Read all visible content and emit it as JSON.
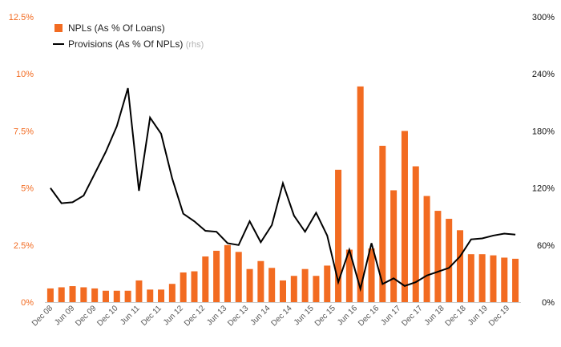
{
  "chart_data": {
    "type": "bar",
    "combo": "bar + line (dual axis)",
    "colors": {
      "bars": "#f26b21",
      "line": "#000000",
      "left_ticks": "#f26b21",
      "right_ticks": "#111111"
    },
    "left_axis": {
      "range": [
        0,
        12.5
      ],
      "ticks": [
        0,
        2.5,
        5,
        7.5,
        10,
        12.5
      ],
      "tick_labels": [
        "0%",
        "2.5%",
        "5%",
        "7.5%",
        "10%",
        "12.5%"
      ]
    },
    "right_axis": {
      "range": [
        0,
        300
      ],
      "ticks": [
        0,
        60,
        120,
        180,
        240,
        300
      ],
      "tick_labels": [
        "0%",
        "60%",
        "120%",
        "180%",
        "240%",
        "300%"
      ]
    },
    "x_tick_labels": [
      "Dec 08",
      "Jun 09",
      "Dec 09",
      "Dec 10",
      "Jun 11",
      "Dec 11",
      "Jun 12",
      "Dec 12",
      "Jun 13",
      "Dec 13",
      "Jun 14",
      "Dec 14",
      "Jun 15",
      "Dec 15",
      "Jun 16",
      "Dec 16",
      "Jun 17",
      "Dec 17",
      "Jun 18",
      "Dec 18",
      "Jun 19",
      "Dec 19"
    ],
    "legend": {
      "bars": "NPLs (As % Of Loans)",
      "line": "Provisions (As % Of NPLs)",
      "line_note": "(rhs)"
    },
    "grid": false,
    "series": [
      {
        "name": "NPLs (As % Of Loans)",
        "type": "bar",
        "axis": "left",
        "values": [
          0.6,
          0.65,
          0.7,
          0.65,
          0.6,
          0.5,
          0.5,
          0.5,
          0.95,
          0.55,
          0.55,
          0.8,
          1.3,
          1.35,
          2.0,
          2.25,
          2.5,
          2.2,
          1.45,
          1.8,
          1.5,
          0.95,
          1.15,
          1.45,
          1.15,
          1.6,
          5.8,
          2.3,
          9.45,
          2.35,
          6.85,
          4.9,
          7.5,
          5.95,
          4.65,
          4.0,
          3.65,
          3.15,
          2.1,
          2.1,
          2.05,
          1.95,
          1.9
        ]
      },
      {
        "name": "Provisions (As % Of NPLs)",
        "type": "line",
        "axis": "right",
        "values": [
          120,
          104,
          105,
          112,
          135,
          158,
          185,
          225,
          117,
          194,
          177,
          130,
          93,
          85,
          75,
          74,
          62,
          60,
          85,
          63,
          81,
          125,
          91,
          74,
          94,
          70,
          21,
          55,
          14,
          62,
          19,
          25,
          17,
          21,
          28,
          32,
          36,
          48,
          66,
          67,
          70,
          72,
          71
        ]
      }
    ]
  }
}
